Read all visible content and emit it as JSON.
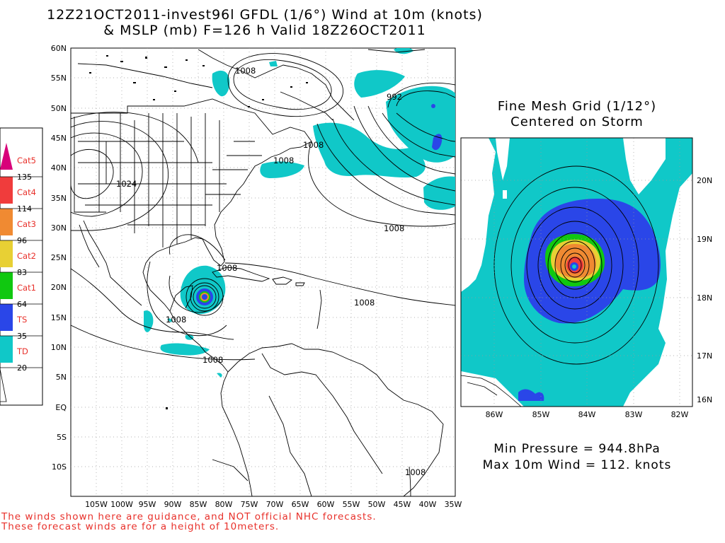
{
  "title": {
    "line1": "12Z21OCT2011-invest96l GFDL (1/6°) Wind at 10m (knots)",
    "line2": "& MSLP (mb) F=126 h Valid 18Z26OCT2011"
  },
  "main_map": {
    "lat_labels": [
      "60N",
      "55N",
      "50N",
      "45N",
      "40N",
      "35N",
      "30N",
      "25N",
      "20N",
      "15N",
      "10N",
      "5N",
      "EQ",
      "5S",
      "10S"
    ],
    "lon_labels": [
      "105W",
      "100W",
      "95W",
      "90W",
      "85W",
      "80W",
      "75W",
      "70W",
      "65W",
      "60W",
      "55W",
      "50W",
      "45W",
      "40W",
      "35W"
    ],
    "isobar_labels": [
      "1008",
      "992",
      "1008",
      "1008",
      "1024",
      "1008",
      "1008",
      "1008",
      "1008",
      "1008",
      "1008"
    ]
  },
  "legend": {
    "categories": [
      {
        "name": "Cat5",
        "color": "#d8007a"
      },
      {
        "name": "Cat4",
        "color": "#f03c3c"
      },
      {
        "name": "Cat3",
        "color": "#f08a32"
      },
      {
        "name": "Cat2",
        "color": "#e8d034"
      },
      {
        "name": "Cat1",
        "color": "#10c810"
      },
      {
        "name": "TS",
        "color": "#2a46e8"
      },
      {
        "name": "TD",
        "color": "#10c8c8"
      }
    ],
    "thresholds": [
      "135",
      "114",
      "96",
      "83",
      "64",
      "35",
      "20"
    ]
  },
  "fine_mesh": {
    "title_line1": "Fine Mesh Grid (1/12°)",
    "title_line2": "Centered on Storm",
    "lat_labels": [
      "20N",
      "19N",
      "18N",
      "17N",
      "16N"
    ],
    "lon_labels": [
      "86W",
      "85W",
      "84W",
      "83W",
      "82W"
    ]
  },
  "stats": {
    "min_pressure": "Min Pressure = 944.8hPa",
    "max_wind": "Max 10m Wind = 112. knots"
  },
  "disclaimer": {
    "line1": "The winds shown here are guidance, and NOT official NHC forecasts.",
    "line2": "These forecast winds are for a height of 10meters."
  }
}
